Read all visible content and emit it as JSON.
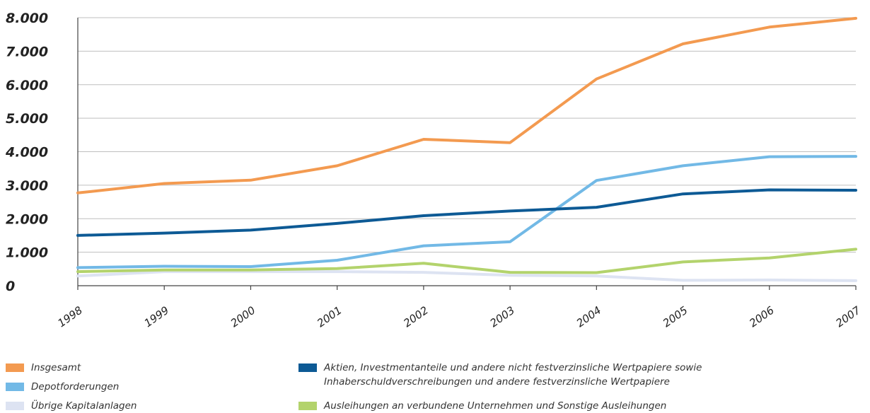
{
  "chart_data": {
    "type": "line",
    "title": "",
    "xlabel": "",
    "ylabel": "",
    "ylim": [
      0,
      8000
    ],
    "yticks": [
      {
        "value": 0,
        "label": "0"
      },
      {
        "value": 1000,
        "label": "1.000"
      },
      {
        "value": 2000,
        "label": "2.000"
      },
      {
        "value": 3000,
        "label": "3.000"
      },
      {
        "value": 4000,
        "label": "4.000"
      },
      {
        "value": 5000,
        "label": "5.000"
      },
      {
        "value": 6000,
        "label": "6.000"
      },
      {
        "value": 7000,
        "label": "7.000"
      },
      {
        "value": 8000,
        "label": "8.000"
      }
    ],
    "grid": true,
    "legend_position": "bottom",
    "x": [
      "1998",
      "1999",
      "2000",
      "2001",
      "2002",
      "2003",
      "2004",
      "2005",
      "2006",
      "2007"
    ],
    "series": [
      {
        "key": "insgesamt",
        "name": "Insgesamt",
        "color": "#f39a50",
        "values": [
          2770,
          3050,
          3150,
          3580,
          4370,
          4270,
          6170,
          7220,
          7720,
          7980
        ]
      },
      {
        "key": "depot",
        "name": "Depotforderungen",
        "color": "#72b9e6",
        "values": [
          540,
          580,
          570,
          760,
          1190,
          1310,
          3140,
          3580,
          3850,
          3860
        ]
      },
      {
        "key": "uebrige",
        "name": "Übrige Kapitalanlagen",
        "color": "#dde3f2",
        "values": [
          290,
          420,
          420,
          420,
          400,
          310,
          290,
          160,
          170,
          150
        ]
      },
      {
        "key": "aktien",
        "name": "Aktien, Investmentanteile und andere nicht festverzinsliche Wertpapiere sowie Inhaberschuldverschreibungen und andere festverzinsliche Wertpapiere",
        "name_lines": [
          "Aktien, Investmentanteile und andere nicht festverzinsliche Wertpapiere sowie",
          "Inhaberschuldverschreibungen und andere festverzinsliche Wertpapiere"
        ],
        "color": "#0d5a95",
        "values": [
          1500,
          1570,
          1660,
          1860,
          2090,
          2230,
          2340,
          2740,
          2860,
          2850
        ]
      },
      {
        "key": "ausleihungen",
        "name": "Ausleihungen an verbundene Unternehmen und Sonstige Ausleihungen",
        "color": "#b3d36c",
        "values": [
          420,
          470,
          470,
          510,
          670,
          400,
          390,
          710,
          830,
          1090
        ]
      }
    ]
  }
}
